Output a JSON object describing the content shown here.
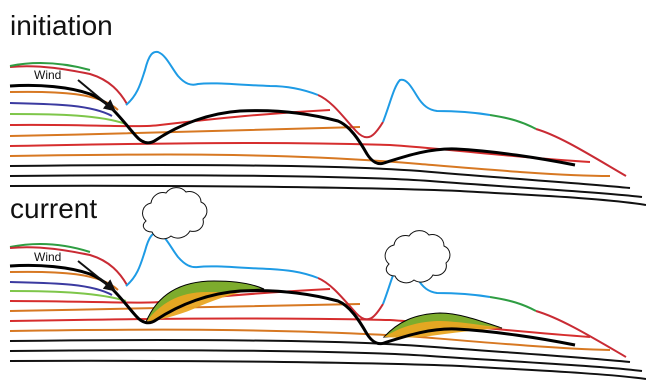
{
  "panels": {
    "top": {
      "title": "initiation",
      "wind_label": "Wind"
    },
    "bottom": {
      "title": "current",
      "wind_label": "Wind"
    }
  },
  "colors": {
    "strata": [
      "#d62d2d",
      "#3b3aa0",
      "#2d8f3a",
      "#d77822",
      "#7ec64a",
      "#f0b22f"
    ],
    "surface_red": "#c92b34",
    "surface_blue": "#1e9be5",
    "surface_green": "#2e9d42",
    "outline": "#000000",
    "deposit_green": "#7dac2d",
    "deposit_yellow": "#e9a722"
  },
  "icons": [
    "wind-arrow-icon",
    "cloud-icon"
  ]
}
